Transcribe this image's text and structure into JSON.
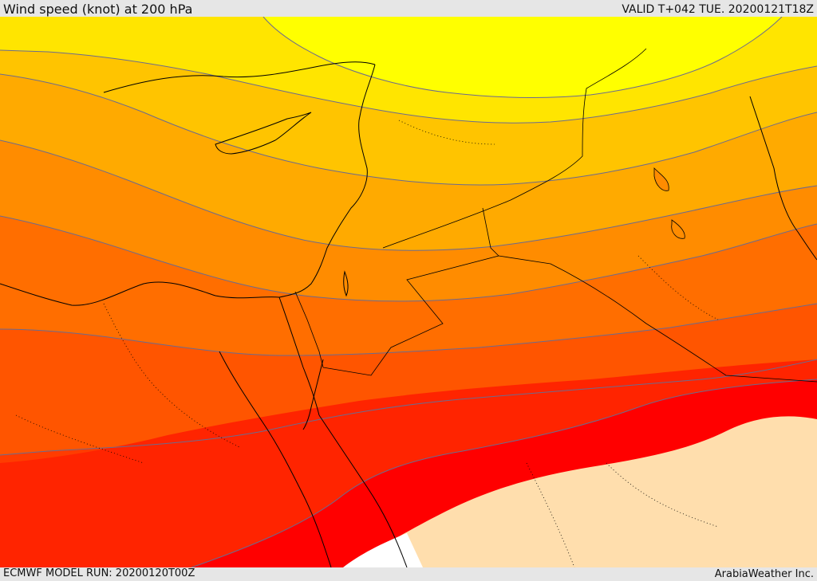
{
  "header": {
    "title": "Wind speed (knot) at 200 hPa",
    "valid": "VALID T+042 TUE. 20200121T18Z"
  },
  "footer": {
    "model_run": "ECMWF MODEL RUN: 20200120T00Z",
    "credit": "ArabiaWeather Inc."
  },
  "map": {
    "field": "wind-speed",
    "band_colors": [
      "#ffff00",
      "#ffe500",
      "#ffc400",
      "#ffaa00",
      "#ff8c00",
      "#ff6e00",
      "#ff5500",
      "#ff3c00",
      "#ff2400",
      "#ff0000",
      "#ffdead",
      "#ffffff"
    ],
    "contour_color": "#6b6b8f",
    "coastline_color": "#000000"
  }
}
